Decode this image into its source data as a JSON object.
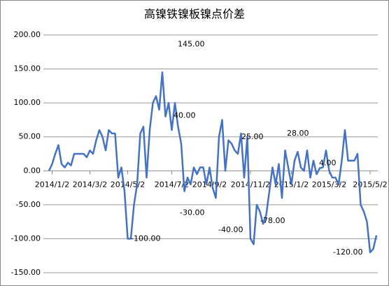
{
  "chart_data": {
    "type": "line",
    "title": "高镍铁镍板镍点价差",
    "categories": [
      null,
      "2014/1/2",
      null,
      null,
      null,
      null,
      null,
      null,
      null,
      null,
      null,
      null,
      null,
      "2014/3/2",
      null,
      null,
      null,
      null,
      null,
      null,
      null,
      null,
      null,
      null,
      null,
      "2014/5/2",
      null,
      null,
      null,
      null,
      null,
      null,
      null,
      null,
      null,
      null,
      null,
      null,
      null,
      "2014/7/2",
      null,
      null,
      null,
      null,
      null,
      null,
      null,
      null,
      null,
      null,
      null,
      "2014/9/2",
      null,
      null,
      null,
      null,
      null,
      null,
      null,
      null,
      null,
      null,
      null,
      null,
      "2014/11/2",
      null,
      null,
      null,
      null,
      null,
      null,
      null,
      null,
      null,
      null,
      null,
      null,
      "2015/1/2",
      null,
      null,
      null,
      null,
      null,
      null,
      null,
      null,
      null,
      null,
      null,
      "2015/3/2",
      null,
      null,
      null,
      null,
      null,
      null,
      null,
      null,
      null,
      null,
      null,
      null,
      "2015/5/2",
      null,
      null
    ],
    "series": [
      {
        "name": "高镍铁镍板镍点价差",
        "color": "#4472c4",
        "values": [
          0,
          10,
          25,
          38,
          10,
          5,
          12,
          8,
          25,
          25,
          25,
          25,
          20,
          30,
          25,
          45,
          60,
          50,
          30,
          60,
          55,
          55,
          -10,
          5,
          -30,
          -100,
          -100,
          -50,
          -20,
          55,
          65,
          -10,
          60,
          100,
          110,
          90,
          145,
          80,
          100,
          60,
          100,
          65,
          40,
          -30,
          -10,
          -20,
          5,
          -5,
          5,
          5,
          -20,
          5,
          -25,
          -40,
          50,
          75,
          0,
          45,
          40,
          30,
          25,
          55,
          -10,
          50,
          -100,
          -108,
          -50,
          -60,
          -78,
          -65,
          -30,
          5,
          -20,
          10,
          -40,
          30,
          5,
          -20,
          15,
          28,
          5,
          0,
          30,
          -10,
          15,
          -5,
          4,
          5,
          30,
          0,
          -10,
          -10,
          -20,
          15,
          60,
          15,
          15,
          15,
          25,
          -50,
          -60,
          -75,
          -120,
          -115,
          -95
        ]
      }
    ],
    "ylim": [
      -150,
      200
    ],
    "yticks": [
      {
        "value": -150,
        "label": "-150.00"
      },
      {
        "value": -100,
        "label": "-100.00"
      },
      {
        "value": -50,
        "label": "-50.00"
      },
      {
        "value": 0,
        "label": "0.00"
      },
      {
        "value": 50,
        "label": "50.00"
      },
      {
        "value": 100,
        "label": "100.00"
      },
      {
        "value": 150,
        "label": "150.00"
      },
      {
        "value": 200,
        "label": "200.00"
      }
    ],
    "grid": true,
    "annotations": [
      {
        "label": "145.00",
        "value": 145
      },
      {
        "label": "40.00",
        "value": 40
      },
      {
        "label": "-100.00",
        "value": -100
      },
      {
        "label": "-30.00",
        "value": -30
      },
      {
        "label": "-40.00",
        "value": -40
      },
      {
        "label": "25.00",
        "value": 25
      },
      {
        "label": "-78.00",
        "value": -78
      },
      {
        "label": "28.00",
        "value": 28
      },
      {
        "label": "4.00",
        "value": 4
      },
      {
        "label": "-120.00",
        "value": -120
      }
    ]
  }
}
